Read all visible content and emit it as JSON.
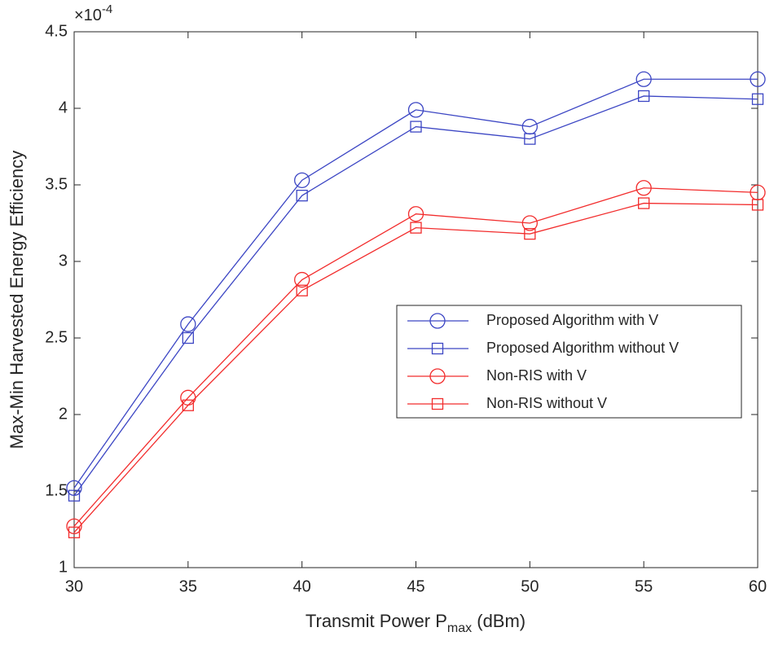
{
  "chart_data": {
    "type": "line",
    "x": [
      30,
      35,
      40,
      45,
      50,
      55,
      60
    ],
    "series": [
      {
        "name": "Proposed Algorithm with V",
        "color": "#3c46c4",
        "marker": "circle",
        "values": [
          1.52,
          2.59,
          3.53,
          3.99,
          3.88,
          4.19,
          4.19
        ]
      },
      {
        "name": "Proposed Algorithm without V",
        "color": "#3c46c4",
        "marker": "square",
        "values": [
          1.47,
          2.5,
          3.43,
          3.88,
          3.8,
          4.08,
          4.06
        ]
      },
      {
        "name": "Non-RIS with V",
        "color": "#f22c2c",
        "marker": "circle",
        "values": [
          1.27,
          2.11,
          2.88,
          3.31,
          3.25,
          3.48,
          3.45
        ]
      },
      {
        "name": "Non-RIS without V",
        "color": "#f22c2c",
        "marker": "square",
        "values": [
          1.23,
          2.06,
          2.81,
          3.22,
          3.18,
          3.38,
          3.37
        ]
      }
    ],
    "xlabel": {
      "main": "Transmit Power P",
      "sub": "max",
      "tail": " (dBm)"
    },
    "ylabel": "Max-Min Harvested Energy Efficiency",
    "y_multiplier": {
      "base": "×10",
      "exponent": "-4"
    },
    "xlim": [
      30,
      60
    ],
    "xticks": [
      30,
      35,
      40,
      45,
      50,
      55,
      60
    ],
    "ylim": [
      1,
      4.5
    ],
    "yticks": [
      1,
      1.5,
      2,
      2.5,
      3,
      3.5,
      4,
      4.5
    ],
    "grid": false,
    "legend": "right"
  }
}
